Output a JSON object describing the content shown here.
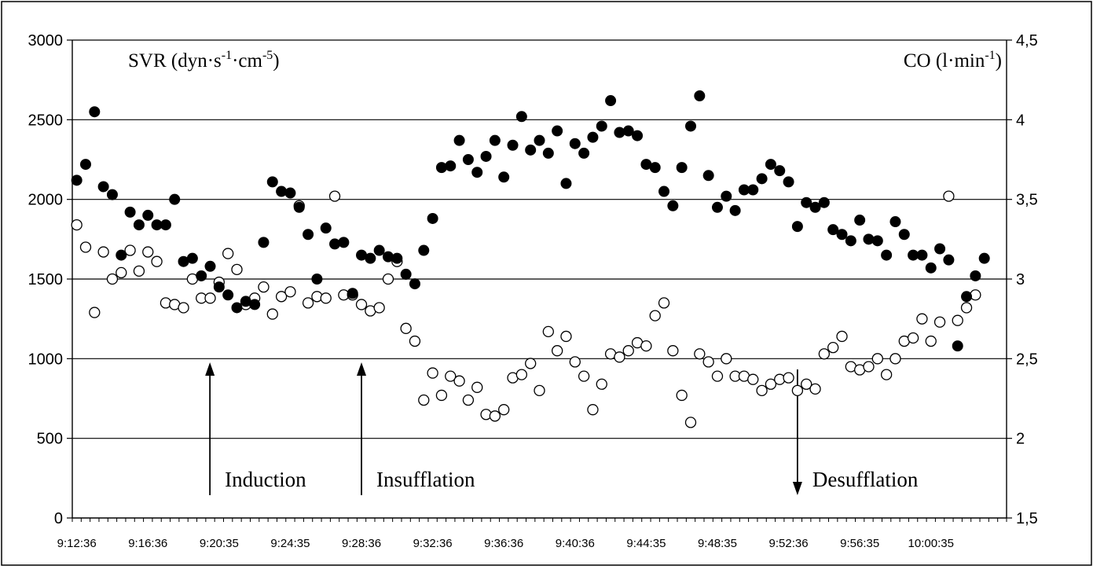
{
  "chart_data": {
    "type": "scatter",
    "title": "",
    "ylabel_left": "SVR (dyn·s-1·cm-5)",
    "ylabel_right": "CO (l·min-1)",
    "ylim_left": [
      0,
      3000
    ],
    "ylim_right": [
      1.5,
      4.5
    ],
    "yticks_left": [
      "0",
      "500",
      "1000",
      "1500",
      "2000",
      "2500",
      "3000"
    ],
    "yticks_right": [
      "1,5",
      "2",
      "2,5",
      "3",
      "3,5",
      "4",
      "4,5"
    ],
    "x_tick_labels": [
      "9:12:36",
      "9:16:36",
      "9:20:35",
      "9:24:35",
      "9:28:36",
      "9:32:36",
      "9:36:36",
      "9:40:36",
      "9:44:35",
      "9:48:35",
      "9:52:36",
      "9:56:35",
      "10:00:35"
    ],
    "x_interval_seconds": 30,
    "grid": "horizontal",
    "annotations": [
      {
        "text": "Induction",
        "time": "9:20:05",
        "arrow": "up"
      },
      {
        "text": "Insufflation",
        "time": "9:28:36",
        "arrow": "up"
      },
      {
        "text": "Desufflation",
        "time": "9:53:06",
        "arrow": "down"
      }
    ],
    "series": [
      {
        "marker": "filled-circle",
        "axis": "left",
        "values": [
          2120,
          2220,
          2550,
          2080,
          2030,
          1650,
          1920,
          1840,
          1900,
          1840,
          1840,
          2000,
          1610,
          1630,
          1520,
          1580,
          1450,
          1400,
          1320,
          1360,
          1340,
          1730,
          2110,
          2050,
          2040,
          1950,
          1780,
          1500,
          1820,
          1720,
          1730,
          1410,
          1650,
          1630,
          1680,
          1640,
          1630,
          1530,
          1470,
          1680,
          1880,
          2200,
          2210,
          2370,
          2250,
          2170,
          2270,
          2370,
          2140,
          2340,
          2520,
          2310,
          2370,
          2290,
          2430,
          2100,
          2350,
          2290,
          2390,
          2460,
          2620,
          2420,
          2430,
          2400,
          2220,
          2200,
          2050,
          1960,
          2200,
          2460,
          2650,
          2150,
          1950,
          2020,
          1930,
          2060,
          2060,
          2130,
          2220,
          2180,
          2110,
          1830,
          1980,
          1950,
          1980,
          1810,
          1780,
          1740,
          1870,
          1750,
          1740,
          1650,
          1860,
          1780,
          1650,
          1650,
          1570,
          1690,
          1620,
          1080,
          1390,
          1520,
          1630
        ]
      },
      {
        "marker": "open-circle",
        "axis": "right",
        "values": [
          3.34,
          3.2,
          2.79,
          3.17,
          3.0,
          3.04,
          3.18,
          3.05,
          3.17,
          3.11,
          2.85,
          2.84,
          2.82,
          3.0,
          2.88,
          2.88,
          2.98,
          3.16,
          3.06,
          2.84,
          2.88,
          2.95,
          2.78,
          2.89,
          2.92,
          3.46,
          2.85,
          2.89,
          2.88,
          3.52,
          2.9,
          2.9,
          2.84,
          2.8,
          2.82,
          3.0,
          3.11,
          2.69,
          2.61,
          2.24,
          2.41,
          2.27,
          2.39,
          2.36,
          2.24,
          2.32,
          2.15,
          2.14,
          2.18,
          2.38,
          2.4,
          2.47,
          2.3,
          2.67,
          2.55,
          2.64,
          2.48,
          2.39,
          2.18,
          2.34,
          2.53,
          2.51,
          2.55,
          2.6,
          2.58,
          2.77,
          2.85,
          2.55,
          2.27,
          2.1,
          2.53,
          2.48,
          2.39,
          2.5,
          2.39,
          2.39,
          2.37,
          2.3,
          2.34,
          2.37,
          2.38,
          2.3,
          2.34,
          2.31,
          2.53,
          2.57,
          2.64,
          2.45,
          2.43,
          2.45,
          2.5,
          2.4,
          2.5,
          2.61,
          2.63,
          2.75,
          2.61,
          2.73,
          3.52,
          2.74,
          2.82,
          2.9
        ]
      }
    ]
  }
}
